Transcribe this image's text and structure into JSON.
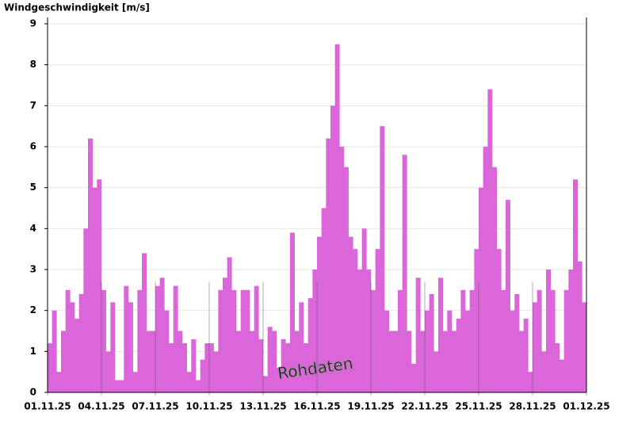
{
  "chart_data": {
    "type": "bar",
    "title": "Windgeschwindigkeit [m/s]",
    "watermark": "Rohdaten",
    "color": "#da66da",
    "grid": true,
    "xlim": [
      0,
      30
    ],
    "xticks": [
      {
        "value": 0,
        "label": "01.11.25"
      },
      {
        "value": 3,
        "label": "04.11.25"
      },
      {
        "value": 6,
        "label": "07.11.25"
      },
      {
        "value": 9,
        "label": "10.11.25"
      },
      {
        "value": 12,
        "label": "13.11.25"
      },
      {
        "value": 15,
        "label": "16.11.25"
      },
      {
        "value": 18,
        "label": "19.11.25"
      },
      {
        "value": 21,
        "label": "22.11.25"
      },
      {
        "value": 24,
        "label": "25.11.25"
      },
      {
        "value": 27,
        "label": "28.11.25"
      },
      {
        "value": 30,
        "label": "01.12.25"
      }
    ],
    "ylim": [
      0,
      9
    ],
    "yticks": [
      0,
      1,
      2,
      3,
      4,
      5,
      6,
      7,
      8,
      9
    ],
    "bar_width": 0.25,
    "x": [
      0,
      0.25,
      0.5,
      0.75,
      1,
      1.25,
      1.5,
      1.75,
      2,
      2.25,
      2.5,
      2.75,
      3,
      3.25,
      3.5,
      3.75,
      4,
      4.25,
      4.5,
      4.75,
      5,
      5.25,
      5.5,
      5.75,
      6,
      6.25,
      6.5,
      6.75,
      7,
      7.25,
      7.5,
      7.75,
      8,
      8.25,
      8.5,
      8.75,
      9,
      9.25,
      9.5,
      9.75,
      10,
      10.25,
      10.5,
      10.75,
      11,
      11.25,
      11.5,
      11.75,
      12,
      12.25,
      12.5,
      12.75,
      13,
      13.25,
      13.5,
      13.75,
      14,
      14.25,
      14.5,
      14.75,
      15,
      15.25,
      15.5,
      15.75,
      16,
      16.25,
      16.5,
      16.75,
      17,
      17.25,
      17.5,
      17.75,
      18,
      18.25,
      18.5,
      18.75,
      19,
      19.25,
      19.5,
      19.75,
      20,
      20.25,
      20.5,
      20.75,
      21,
      21.25,
      21.5,
      21.75,
      22,
      22.25,
      22.5,
      22.75,
      23,
      23.25,
      23.5,
      23.75,
      24,
      24.25,
      24.5,
      24.75,
      25,
      25.25,
      25.5,
      25.75,
      26,
      26.25,
      26.5,
      26.75,
      27,
      27.25,
      27.5,
      27.75,
      28,
      28.25,
      28.5,
      28.75,
      29,
      29.25,
      29.5,
      29.75
    ],
    "values": [
      1.2,
      2.0,
      0.5,
      1.5,
      2.5,
      2.2,
      1.8,
      2.4,
      4.0,
      6.2,
      5.0,
      5.2,
      2.5,
      1.0,
      2.2,
      0.3,
      0.3,
      2.6,
      2.2,
      0.5,
      2.5,
      3.4,
      1.5,
      1.5,
      2.6,
      2.8,
      2.0,
      1.2,
      2.6,
      1.5,
      1.2,
      0.5,
      1.3,
      0.3,
      0.8,
      1.2,
      1.2,
      1.0,
      2.5,
      2.8,
      3.3,
      2.5,
      1.5,
      2.5,
      2.5,
      1.5,
      2.6,
      1.3,
      0.4,
      1.6,
      1.5,
      0.6,
      1.3,
      1.2,
      3.9,
      1.5,
      2.2,
      1.2,
      2.3,
      3.0,
      3.8,
      4.5,
      6.2,
      7.0,
      8.5,
      6.0,
      5.5,
      3.8,
      3.5,
      3.0,
      4.0,
      3.0,
      2.5,
      3.5,
      6.5,
      2.0,
      1.5,
      1.5,
      2.5,
      5.8,
      1.5,
      0.7,
      2.8,
      1.5,
      2.0,
      2.4,
      1.0,
      2.8,
      1.5,
      2.0,
      1.5,
      1.8,
      2.5,
      2.0,
      2.5,
      3.5,
      5.0,
      6.0,
      7.4,
      5.5,
      3.5,
      2.5,
      4.7,
      2.0,
      2.4,
      1.5,
      1.8,
      0.5,
      2.2,
      2.5,
      1.0,
      3.0,
      2.5,
      1.2,
      0.8,
      2.5,
      3.0,
      5.2,
      3.2,
      2.2
    ]
  }
}
